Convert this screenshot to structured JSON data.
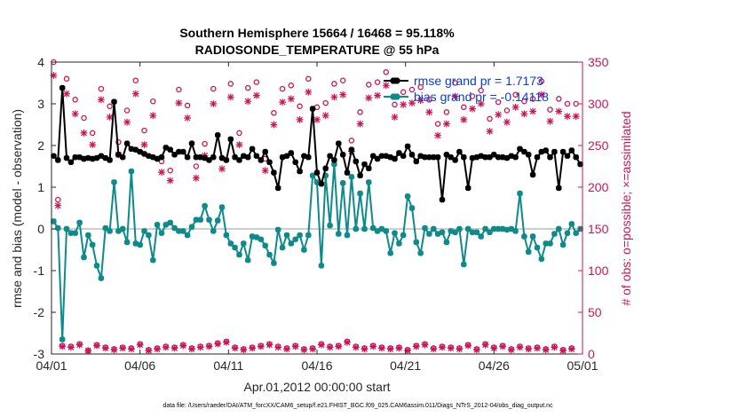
{
  "chart_data": {
    "type": "line",
    "title": [
      "Southern Hemisphere 15664 / 16468 = 95.118%",
      "RADIOSONDE_TEMPERATURE @ 55 hPa"
    ],
    "xlabel": "Apr.01,2012 00:00:00 start",
    "ylabel_left": "rmse and bias (model - observation)",
    "ylabel_right": "# of obs: o=possible; ×=assimilated",
    "xlim": [
      0,
      30
    ],
    "ylim_left": [
      -3,
      4
    ],
    "ylim_right": [
      0,
      350
    ],
    "xticks": [
      0,
      5,
      10,
      15,
      20,
      25,
      30
    ],
    "xtick_labels": [
      "04/01",
      "04/06",
      "04/11",
      "04/16",
      "04/21",
      "04/26",
      "05/01"
    ],
    "yticks_left": [
      -3,
      -2,
      -1,
      0,
      1,
      2,
      3,
      4
    ],
    "yticks_right": [
      0,
      50,
      100,
      150,
      200,
      250,
      300,
      350
    ],
    "footer": "data file: /Users/raeder/DAI/ATM_forcXX/CAM6_setup/f.e21.FHIST_BGC.f09_025.CAM6assim.011/Diags_NTrS_2012-04/obs_diag_output.nc",
    "colors": {
      "rmse": "#000000",
      "bias": "#0f8a8a",
      "obs": "#cc1456",
      "legend_text": "#0b3bd6"
    },
    "series": [
      {
        "name": "rmse grand pr = 1.7173",
        "axis": "left",
        "values": [
          1.75,
          1.65,
          3.38,
          1.7,
          1.6,
          1.72,
          1.72,
          1.68,
          1.7,
          1.68,
          1.7,
          1.75,
          1.7,
          1.65,
          3.05,
          1.78,
          1.72,
          2.05,
          1.92,
          1.9,
          1.85,
          1.8,
          1.75,
          1.72,
          1.68,
          1.72,
          1.95,
          1.9,
          1.78,
          1.85,
          1.85,
          1.72,
          2.05,
          1.72,
          1.72,
          1.7,
          1.65,
          1.72,
          2.25,
          1.7,
          1.65,
          2.15,
          1.72,
          1.65,
          1.75,
          1.72,
          1.92,
          1.75,
          1.65,
          1.85,
          1.6,
          1.35,
          0.98,
          1.72,
          1.75,
          1.82,
          1.6,
          1.38,
          1.75,
          1.72,
          2.88,
          1.35,
          1.08,
          1.45,
          1.75,
          1.65,
          2.05,
          1.78,
          1.35,
          1.9,
          1.62,
          1.28,
          1.55,
          1.45,
          1.75,
          1.68,
          1.75,
          1.75,
          1.72,
          1.68,
          1.82,
          1.75,
          1.98,
          1.78,
          1.62,
          1.75,
          1.72,
          1.72,
          1.72,
          1.72,
          0.7,
          1.78,
          1.72,
          1.65,
          1.85,
          1.72,
          0.98,
          1.7,
          1.72,
          1.75,
          1.72,
          1.72,
          1.78,
          1.72,
          1.72,
          1.7,
          1.75,
          1.72,
          1.92,
          1.85,
          1.78,
          1.3,
          1.72,
          1.85,
          1.88,
          1.72,
          1.85,
          0.98,
          1.85,
          1.75,
          1.88,
          1.72,
          1.55
        ]
      },
      {
        "name": "bias grand pr = -0.14118",
        "axis": "left",
        "values": [
          0.18,
          0.02,
          -2.65,
          0.0,
          -0.1,
          -0.1,
          0.15,
          -0.68,
          -0.15,
          -0.38,
          -0.88,
          -1.18,
          0.02,
          -0.05,
          1.12,
          -0.05,
          0.0,
          -0.32,
          1.38,
          -0.35,
          -0.38,
          -0.05,
          -0.15,
          -0.75,
          0.1,
          -0.1,
          0.1,
          0.15,
          0.02,
          -0.05,
          -0.05,
          -0.15,
          0.05,
          0.22,
          0.22,
          0.55,
          0.22,
          -0.05,
          0.2,
          0.52,
          -0.15,
          -0.35,
          -0.45,
          -0.62,
          -0.35,
          -0.75,
          -0.18,
          -0.2,
          -0.25,
          -0.4,
          -0.62,
          -0.82,
          -0.02,
          -0.45,
          -0.15,
          -0.35,
          -0.25,
          -0.15,
          -0.5,
          -0.15,
          1.28,
          1.12,
          -0.88,
          1.28,
          0.08,
          1.55,
          -0.12,
          1.1,
          -0.15,
          1.25,
          0.0,
          0.85,
          0.0,
          1.12,
          0.02,
          -0.05,
          0.0,
          -0.05,
          -0.58,
          -0.1,
          -0.35,
          -0.15,
          0.78,
          0.5,
          -0.32,
          -0.58,
          0.02,
          -0.12,
          0.0,
          -0.12,
          -0.08,
          -0.32,
          -0.05,
          -0.08,
          0.0,
          -0.85,
          0.0,
          -0.08,
          -0.08,
          -0.18,
          0.0,
          -0.08,
          0.0,
          0.0,
          0.0,
          -0.02,
          0.0,
          -0.05,
          0.85,
          -0.18,
          -0.55,
          -0.18,
          -0.45,
          -0.72,
          -0.35,
          -0.35,
          -0.12,
          0.0,
          -0.38,
          -0.1,
          0.12,
          -0.1,
          0.0
        ]
      },
      {
        "name": "possible",
        "axis": "right",
        "values": [
          350,
          185,
          10,
          330,
          9,
          305,
          12,
          283,
          4,
          265,
          11,
          318,
          8,
          297,
          6,
          254,
          8,
          292,
          7,
          328,
          12,
          268,
          5,
          303,
          7,
          231,
          9,
          220,
          8,
          317,
          11,
          298,
          7,
          225,
          9,
          252,
          10,
          318,
          13,
          235,
          15,
          324,
          8,
          265,
          6,
          319,
          8,
          326,
          10,
          234,
          12,
          289,
          9,
          318,
          7,
          322,
          10,
          297,
          6,
          330,
          7,
          296,
          12,
          301,
          9,
          324,
          10,
          328,
          15,
          256,
          9,
          290,
          7,
          323,
          10,
          326,
          8,
          338,
          7,
          299,
          8,
          314,
          5,
          317,
          10,
          320,
          12,
          305,
          7,
          276,
          9,
          290,
          8,
          325,
          7,
          296,
          11,
          309,
          6,
          316,
          12,
          282,
          8,
          302,
          10,
          292,
          6,
          311,
          9,
          303,
          7,
          306,
          8,
          327,
          6,
          293,
          9,
          306,
          5,
          300,
          7,
          300
        ]
      },
      {
        "name": "assimilated",
        "axis": "right",
        "values": [
          334,
          178,
          9,
          312,
          8,
          288,
          11,
          265,
          4,
          251,
          10,
          305,
          7,
          284,
          5,
          239,
          7,
          278,
          6,
          312,
          11,
          251,
          4,
          286,
          6,
          218,
          8,
          208,
          7,
          301,
          10,
          283,
          6,
          211,
          8,
          238,
          9,
          300,
          12,
          222,
          14,
          308,
          7,
          251,
          5,
          303,
          7,
          310,
          9,
          220,
          11,
          275,
          8,
          302,
          6,
          306,
          9,
          281,
          5,
          314,
          6,
          281,
          11,
          286,
          8,
          308,
          9,
          311,
          14,
          243,
          8,
          276,
          6,
          307,
          9,
          310,
          7,
          322,
          6,
          284,
          7,
          299,
          4,
          301,
          9,
          304,
          11,
          290,
          6,
          262,
          8,
          276,
          7,
          309,
          6,
          281,
          10,
          294,
          5,
          300,
          11,
          267,
          7,
          287,
          9,
          278,
          5,
          296,
          8,
          288,
          6,
          291,
          7,
          311,
          5,
          279,
          8,
          291,
          4,
          285,
          6,
          285
        ]
      }
    ]
  }
}
